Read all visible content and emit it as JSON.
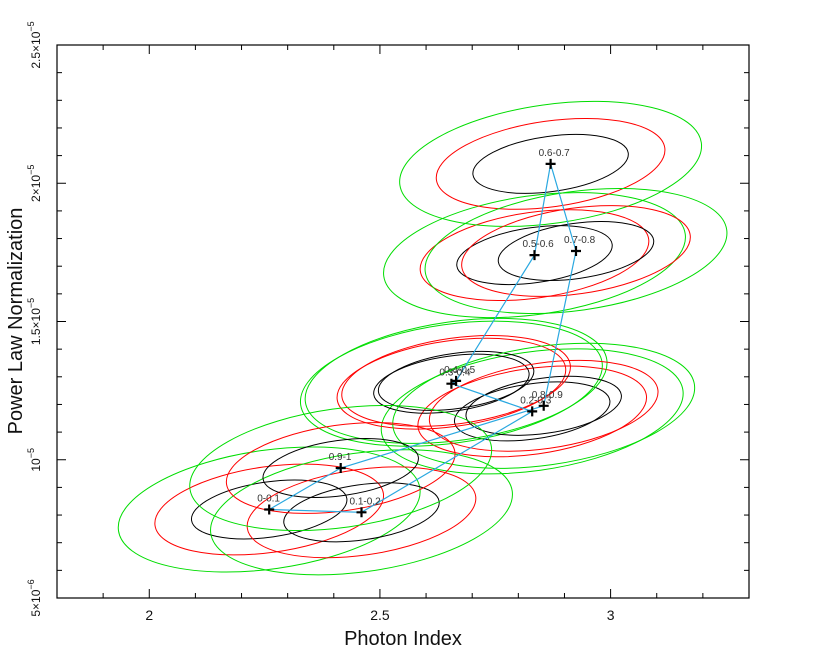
{
  "chart_data": {
    "type": "scatter",
    "xlabel": "Photon Index",
    "ylabel": "Power Law Normalization",
    "xlim": [
      1.8,
      3.3
    ],
    "ylim": [
      5e-06,
      2.5e-05
    ],
    "x_ticks": [
      {
        "value": 2.0,
        "label": "2"
      },
      {
        "value": 2.5,
        "label": "2.5"
      },
      {
        "value": 3.0,
        "label": "3"
      }
    ],
    "y_ticks": [
      {
        "value": 5e-06,
        "mantissa": "5×10",
        "exp": "−6"
      },
      {
        "value": 1e-05,
        "mantissa": "10",
        "exp": "−5"
      },
      {
        "value": 1.5e-05,
        "mantissa": "1.5×10",
        "exp": "−5"
      },
      {
        "value": 2e-05,
        "mantissa": "2×10",
        "exp": "−5"
      },
      {
        "value": 2.5e-05,
        "mantissa": "2.5×10",
        "exp": "−5"
      }
    ],
    "points": [
      {
        "label": "0-0.1",
        "x": 2.26,
        "y": 8.2e-06
      },
      {
        "label": "0.1-0.2",
        "x": 2.46,
        "y": 8.1e-06
      },
      {
        "label": "0.2-0.3",
        "x": 2.83,
        "y": 1.175e-05
      },
      {
        "label": "0.3-0.4",
        "x": 2.655,
        "y": 1.275e-05
      },
      {
        "label": "0.4-0.5",
        "x": 2.665,
        "y": 1.285e-05
      },
      {
        "label": "0.5-0.6",
        "x": 2.835,
        "y": 1.74e-05
      },
      {
        "label": "0.6-0.7",
        "x": 2.87,
        "y": 2.07e-05
      },
      {
        "label": "0.7-0.8",
        "x": 2.925,
        "y": 1.755e-05
      },
      {
        "label": "0.8-0.9",
        "x": 2.855,
        "y": 1.195e-05
      },
      {
        "label": "0.9-1",
        "x": 2.415,
        "y": 9.7e-06
      }
    ],
    "connection_order": [
      "0-0.1",
      "0.1-0.2",
      "0.2-0.3",
      "0.3-0.4",
      "0.4-0.5",
      "0.5-0.6",
      "0.6-0.7",
      "0.7-0.8",
      "0.8-0.9",
      "0.9-1",
      "0-0.1"
    ],
    "contour_levels": [
      {
        "level": 1,
        "color": "#000000"
      },
      {
        "level": 2,
        "color": "#ff0000"
      },
      {
        "level": 3,
        "color": "#00dd00"
      }
    ],
    "contour_semi_axes": [
      {
        "x": 0.17,
        "y": 1e-06
      },
      {
        "x": 0.25,
        "y": 1.55e-06
      },
      {
        "x": 0.33,
        "y": 2.15e-06
      }
    ],
    "connector_color": "#2aa8e0",
    "marker_color": "#000000"
  }
}
